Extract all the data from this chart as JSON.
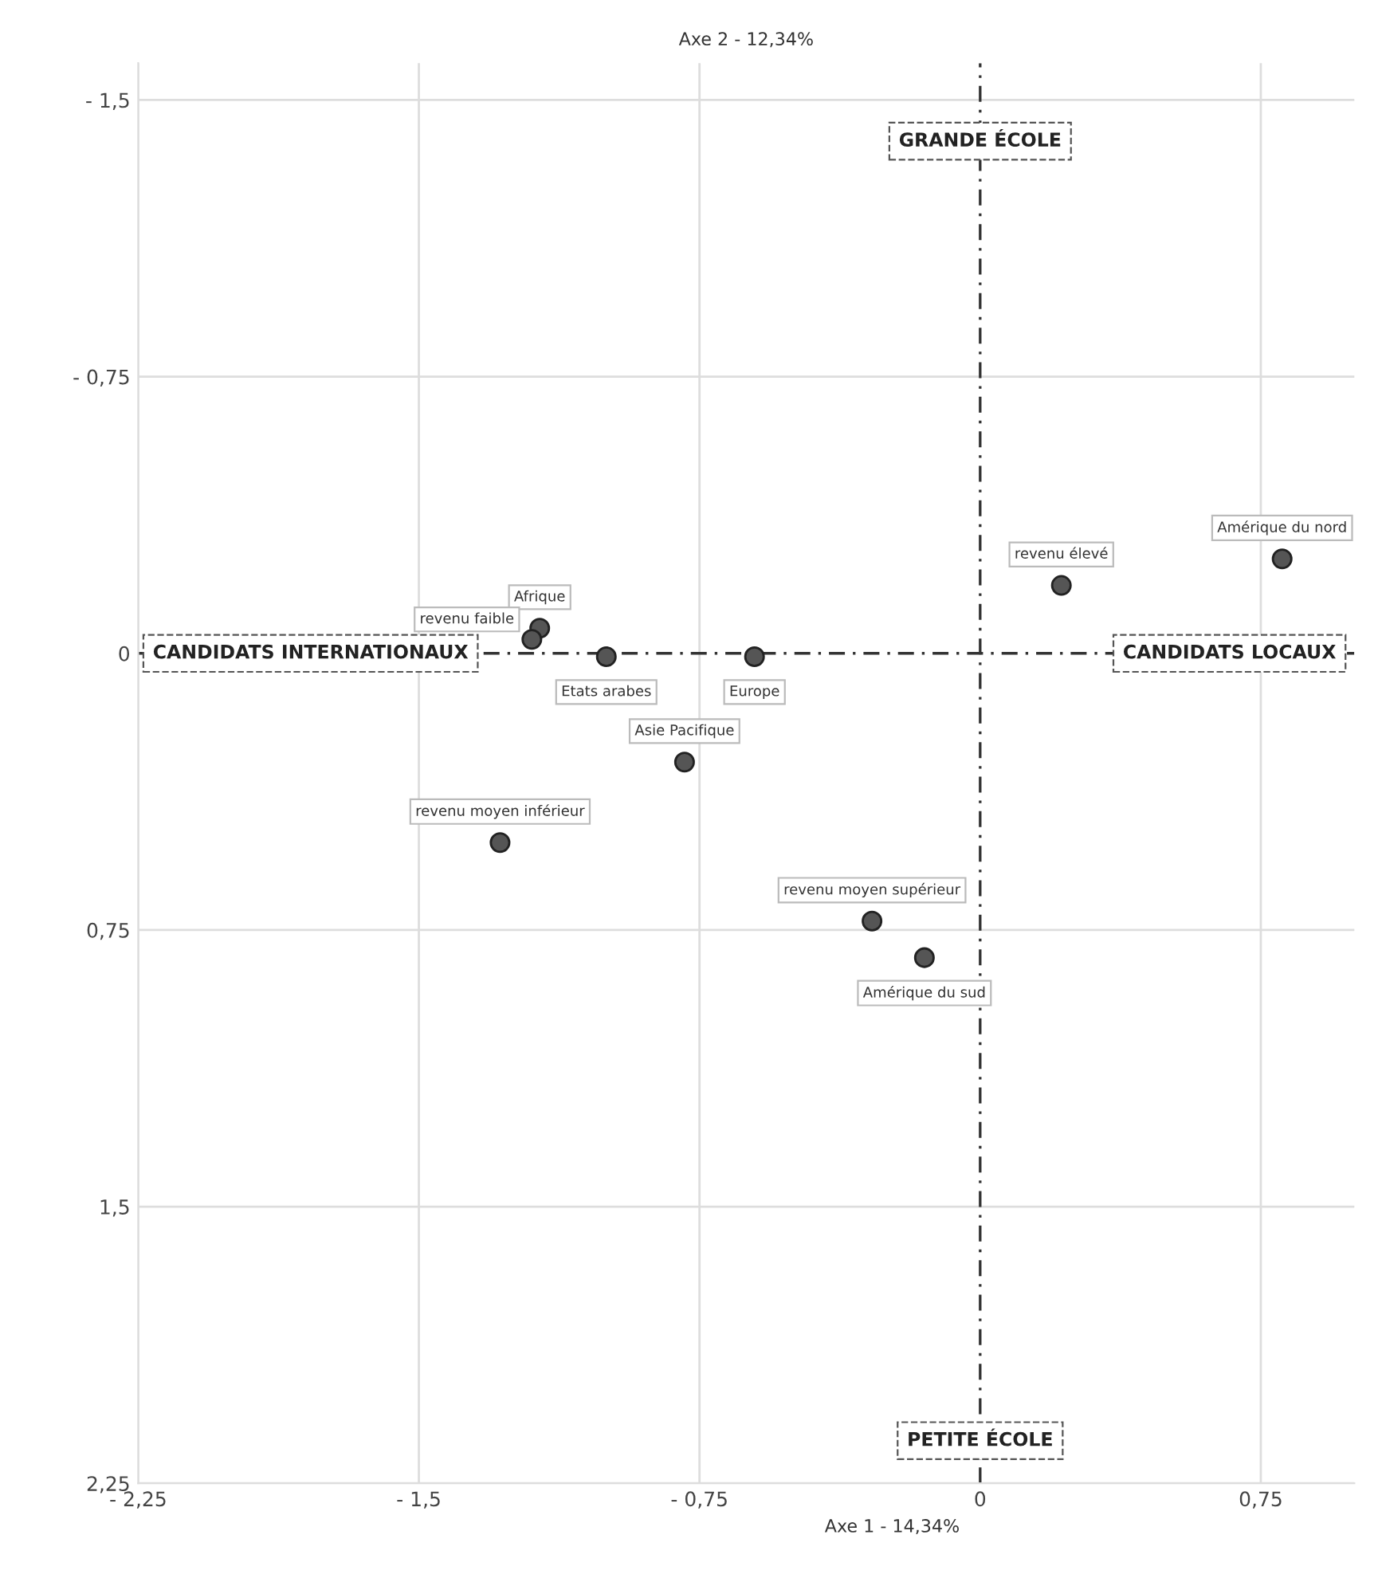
{
  "chart_data": {
    "type": "scatter",
    "xlabel": "Axe 1 - 14,34%",
    "ylabel": "Axe 2 - 12,34%",
    "x": [
      0.807,
      0.217,
      -1.177,
      -1.198,
      -0.999,
      -0.603,
      -0.79,
      -1.283,
      -0.289,
      -0.149
    ],
    "series": [
      {
        "color": "#555555",
        "values": [
          -0.256,
          -0.184,
          -0.068,
          -0.038,
          0.009,
          0.009,
          0.295,
          0.513,
          0.726,
          0.825
        ]
      }
    ],
    "annotations": [
      "GRANDE ÉCOLE",
      "CANDIDATS LOCAUX",
      "PETITE ÉCOLE",
      "CANDIDATS INTERNATIONAUX",
      {
        "text": "Amérique du nord",
        "x": 0.807,
        "y": -0.256
      },
      {
        "text": "revenu élevé",
        "x": 0.217,
        "y": -0.184
      },
      {
        "text": "Afrique",
        "x": -1.177,
        "y": -0.068
      },
      {
        "text": "revenu faible",
        "x": -1.198,
        "y": -0.038
      },
      {
        "text": "Etats arabes",
        "x": -0.999,
        "y": 0.009
      },
      {
        "text": "Europe",
        "x": -0.603,
        "y": 0.009
      },
      {
        "text": "Asie Pacifique",
        "x": -0.79,
        "y": 0.295
      },
      {
        "text": "revenu moyen inférieur",
        "x": -1.283,
        "y": 0.513
      },
      {
        "text": "revenu moyen supérieur",
        "x": -0.289,
        "y": 0.726
      },
      {
        "text": "Amérique du sud",
        "x": -0.149,
        "y": 0.825
      }
    ],
    "xlim": [
      -2.25,
      1.0
    ],
    "ylim": [
      2.25,
      -1.6
    ],
    "xticks": [
      {
        "value": -2.25,
        "label": "- 2,25"
      },
      {
        "value": -1.5,
        "label": "- 1,5"
      },
      {
        "value": -0.75,
        "label": "- 0,75"
      },
      0,
      {
        "value": 0.75,
        "label": "0,75"
      }
    ],
    "yticks": [
      {
        "value": -1.5,
        "label": "- 1,5"
      },
      {
        "value": -0.75,
        "label": "- 0,75"
      },
      0,
      {
        "value": 0.75,
        "label": "0,75"
      },
      {
        "value": 1.5,
        "label": "1,5"
      },
      {
        "value": 2.25,
        "label": "2,25"
      }
    ],
    "grid": true,
    "marker": "circle",
    "legend": false
  }
}
